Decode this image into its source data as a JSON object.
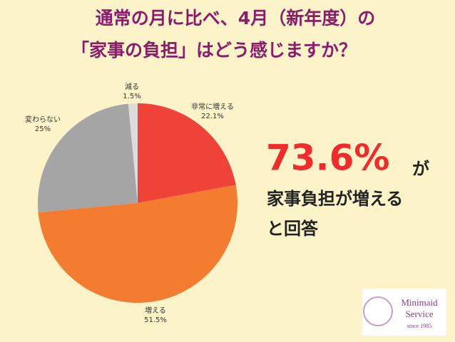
{
  "chart_data": {
    "type": "pie",
    "title": [
      "通常の月に比べ、4月（新年度）の",
      "「家事の負担」はどう感じますか？"
    ],
    "categories": [
      "非常に増える",
      "増える",
      "変わらない",
      "減る"
    ],
    "values": [
      22.1,
      51.5,
      25,
      1.5
    ],
    "value_labels": [
      "22.1%",
      "51.5%",
      "25%",
      "1.5%"
    ],
    "colors": [
      "#ef4238",
      "#f47c30",
      "#a5a5a5",
      "#dcdcdc"
    ],
    "annotation": {
      "highlight": "73.6%",
      "text": [
        "が",
        "家事負担が増える",
        "と回答"
      ]
    },
    "logo": {
      "name": [
        "Minimaid",
        "Service"
      ],
      "since": "since 1985"
    }
  }
}
